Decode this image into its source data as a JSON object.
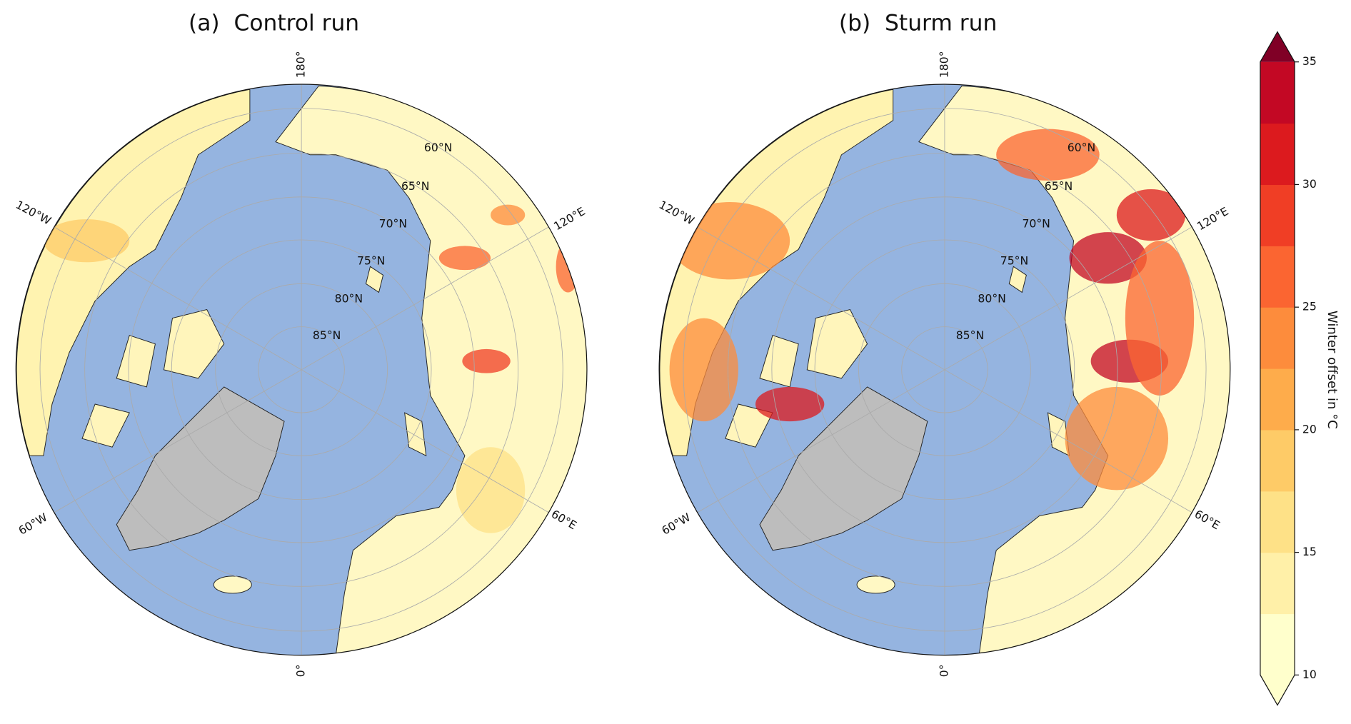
{
  "panels": [
    {
      "title": "(a)  Control run",
      "lon_labels": [
        "180°",
        "120°E",
        "60°E",
        "0°",
        "60°W",
        "120°W"
      ],
      "lat_labels": [
        "60°N",
        "65°N",
        "70°N",
        "75°N",
        "80°N",
        "85°N"
      ]
    },
    {
      "title": "(b)  Sturm run",
      "lon_labels": [
        "180°",
        "120°E",
        "60°E",
        "0°",
        "60°W",
        "120°W"
      ],
      "lat_labels": [
        "60°N",
        "65°N",
        "70°N",
        "75°N",
        "80°N",
        "85°N"
      ]
    }
  ],
  "colorbar": {
    "label": "Winter offset in °C",
    "lim": [
      10,
      35
    ],
    "ticks": [
      10,
      15,
      20,
      25,
      30,
      35
    ],
    "colors": [
      "#ffffcc",
      "#fff0a8",
      "#fee187",
      "#fecb67",
      "#feac4b",
      "#fd8c3c",
      "#fb6531",
      "#f03e25",
      "#dc1a1e",
      "#c30824"
    ],
    "under_color": "#ffffcc",
    "over_color": "#800026"
  }
}
